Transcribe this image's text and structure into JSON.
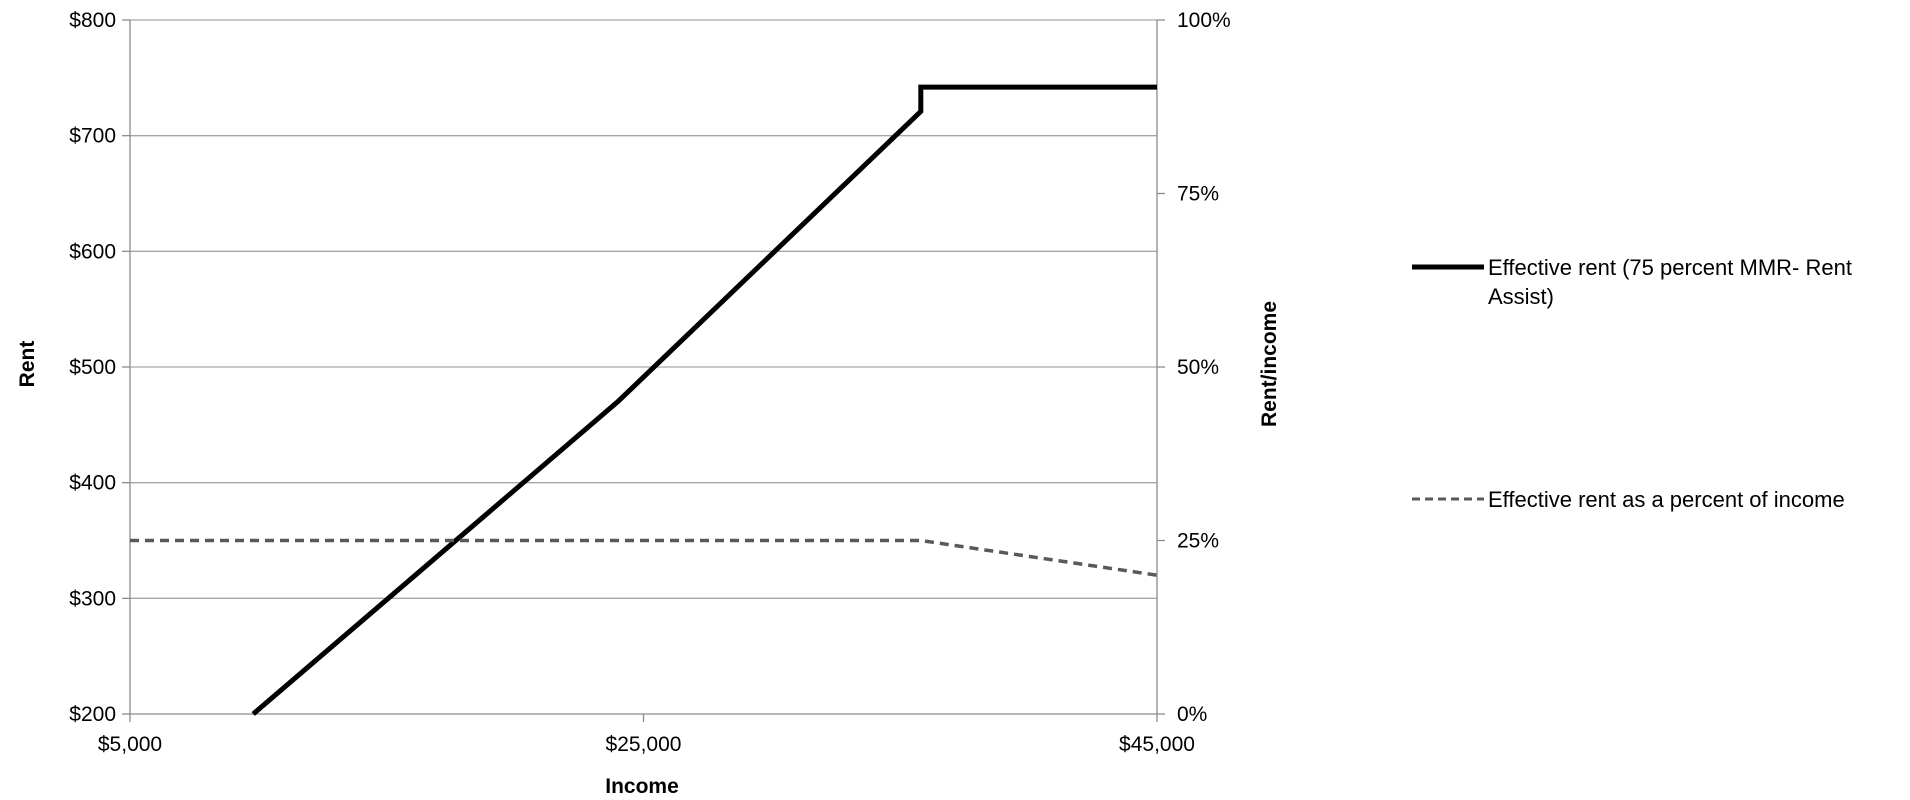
{
  "chart_data": {
    "type": "line",
    "title": "",
    "xlabel": "Income",
    "ylabel": "Rent",
    "y2label": "Rent/income",
    "xlim": [
      5000,
      45000
    ],
    "ylim": [
      200,
      800
    ],
    "y2lim": [
      0,
      1
    ],
    "x_ticks": [
      5000,
      25000,
      45000
    ],
    "x_tick_labels": [
      "$5,000",
      "$25,000",
      "$45,000"
    ],
    "y_ticks": [
      200,
      300,
      400,
      500,
      600,
      700,
      800
    ],
    "y_tick_labels": [
      "$200",
      "$300",
      "$400",
      "$500",
      "$600",
      "$700",
      "$800"
    ],
    "y2_ticks": [
      0,
      0.25,
      0.5,
      0.75,
      1
    ],
    "y2_tick_labels": [
      "0%",
      "25%",
      "50%",
      "75%",
      "100%"
    ],
    "grid": true,
    "legend_position": "right",
    "series": [
      {
        "name": "Effective rent (75 percent MMR- Rent Assist)",
        "axis": "left",
        "style": "solid",
        "color": "#000000",
        "points": [
          [
            9800,
            200
          ],
          [
            24000,
            470
          ],
          [
            35800,
            721
          ],
          [
            35800,
            742
          ],
          [
            45000,
            742
          ]
        ]
      },
      {
        "name": "Effective rent as a percent of income",
        "axis": "right",
        "style": "dashed",
        "color": "#595959",
        "points": [
          [
            5000,
            0.25
          ],
          [
            35800,
            0.25
          ],
          [
            45000,
            0.2
          ]
        ]
      }
    ]
  }
}
